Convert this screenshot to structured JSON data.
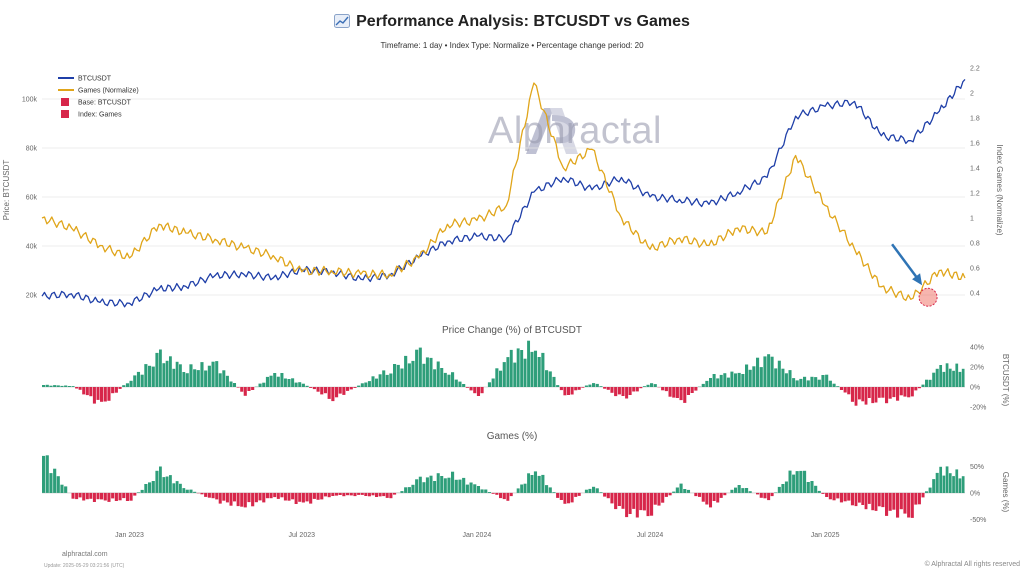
{
  "header": {
    "title": "Performance Analysis: BTCUSDT vs Games",
    "subtitle": "Timeframe: 1 day  •  Index Type: Normalize  •  Percentage change period: 20"
  },
  "legend": [
    {
      "label": "BTCUSDT",
      "type": "line",
      "color": "#1f3fa8"
    },
    {
      "label": "Games (Normalize)",
      "type": "line",
      "color": "#e0a51a"
    },
    {
      "label": "Base: BTCUSDT",
      "type": "box",
      "color": "#d7264a"
    },
    {
      "label": "Index: Games",
      "type": "box",
      "color": "#d7264a"
    }
  ],
  "watermark": "Alphractal",
  "footer": {
    "site": "alphractal.com",
    "update": "Update: 2025-05-29 03:21:56 (UTC)",
    "copyright": "© Alphractal All rights reserved"
  },
  "chart_data": [
    {
      "type": "line",
      "x": [
        "2022-10-01",
        "2022-11-01",
        "2022-12-01",
        "2023-01-01",
        "2023-02-01",
        "2023-03-01",
        "2023-04-01",
        "2023-05-01",
        "2023-06-01",
        "2023-07-01",
        "2023-08-01",
        "2023-09-01",
        "2023-10-01",
        "2023-11-01",
        "2023-12-01",
        "2024-01-01",
        "2024-02-01",
        "2024-03-01",
        "2024-04-01",
        "2024-05-01",
        "2024-06-01",
        "2024-07-01",
        "2024-08-01",
        "2024-09-01",
        "2024-10-01",
        "2024-11-01",
        "2024-12-01",
        "2025-01-01",
        "2025-02-01",
        "2025-03-01",
        "2025-04-01",
        "2025-05-01",
        "2025-05-28"
      ],
      "series": [
        {
          "name": "BTCUSDT",
          "axis": "left",
          "color": "#1f3fa8",
          "values": [
            19500,
            20500,
            17000,
            16600,
            22500,
            23500,
            28000,
            28500,
            27000,
            30300,
            29500,
            26500,
            28000,
            35500,
            42000,
            44000,
            43000,
            62000,
            68000,
            63000,
            68000,
            60000,
            59000,
            57000,
            62000,
            68000,
            93000,
            97000,
            99000,
            85000,
            83000,
            95000,
            108000
          ]
        },
        {
          "name": "Games (Normalize)",
          "axis": "right",
          "color": "#e0a51a",
          "values": [
            1.0,
            0.92,
            0.78,
            0.68,
            0.95,
            0.88,
            0.83,
            0.76,
            0.7,
            0.57,
            0.58,
            0.55,
            0.55,
            0.68,
            0.95,
            0.98,
            1.1,
            2.08,
            1.4,
            1.55,
            1.0,
            0.75,
            0.84,
            0.78,
            0.92,
            0.88,
            1.5,
            1.1,
            0.75,
            0.45,
            0.35,
            0.58,
            0.52
          ]
        }
      ],
      "annotation": {
        "x": "2025-04-15",
        "y": 0.35,
        "type": "circle-arrow"
      },
      "ylabel": "Price: BTCUSDT",
      "ylabel_right": "Index Games (Normalize)",
      "yticks_left": [
        "20k",
        "40k",
        "60k",
        "80k",
        "100k"
      ],
      "yticks_right": [
        "0.4",
        "0.6",
        "0.8",
        "1",
        "1.2",
        "1.4",
        "1.6",
        "1.8",
        "2",
        "2.2"
      ],
      "legend_placement": "top-left",
      "grid": true
    },
    {
      "type": "bar",
      "title": "Price Change (%) of BTCUSDT",
      "ylabel": "BTCUSDT (%)",
      "yticks": [
        "40%",
        "20%",
        "0%",
        "-20%"
      ],
      "ylim": [
        -25,
        45
      ],
      "x": [
        "2022-10-01",
        "2022-11-01",
        "2022-12-01",
        "2023-01-01",
        "2023-02-01",
        "2023-03-01",
        "2023-04-01",
        "2023-05-01",
        "2023-06-01",
        "2023-07-01",
        "2023-08-01",
        "2023-09-01",
        "2023-10-01",
        "2023-11-01",
        "2023-12-01",
        "2024-01-01",
        "2024-02-01",
        "2024-03-01",
        "2024-04-01",
        "2024-05-01",
        "2024-06-01",
        "2024-07-01",
        "2024-08-01",
        "2024-09-01",
        "2024-10-01",
        "2024-11-01",
        "2024-12-01",
        "2025-01-01",
        "2025-02-01",
        "2025-03-01",
        "2025-04-01",
        "2025-05-01",
        "2025-05-28"
      ],
      "values": [
        2,
        1,
        -18,
        8,
        30,
        18,
        22,
        -8,
        14,
        3,
        -12,
        3,
        18,
        32,
        15,
        -10,
        30,
        40,
        -10,
        5,
        -12,
        5,
        -16,
        10,
        14,
        30,
        8,
        10,
        -15,
        -14,
        -8,
        20,
        18
      ],
      "colors": {
        "positive": "#2e9e7a",
        "negative": "#d7264a"
      }
    },
    {
      "type": "bar",
      "title": "Games (%)",
      "ylabel": "Games (%)",
      "yticks": [
        "50%",
        "0%",
        "-50%"
      ],
      "ylim": [
        -55,
        85
      ],
      "x": [
        "2022-10-01",
        "2022-11-01",
        "2022-12-01",
        "2023-01-01",
        "2023-02-01",
        "2023-03-01",
        "2023-04-01",
        "2023-05-01",
        "2023-06-01",
        "2023-07-01",
        "2023-08-01",
        "2023-09-01",
        "2023-10-01",
        "2023-11-01",
        "2023-12-01",
        "2024-01-01",
        "2024-02-01",
        "2024-03-01",
        "2024-04-01",
        "2024-05-01",
        "2024-06-01",
        "2024-07-01",
        "2024-08-01",
        "2024-09-01",
        "2024-10-01",
        "2024-11-01",
        "2024-12-01",
        "2025-01-01",
        "2025-02-01",
        "2025-03-01",
        "2025-04-01",
        "2025-05-01",
        "2025-05-28"
      ],
      "values": [
        70,
        -10,
        -15,
        -12,
        40,
        8,
        -15,
        -25,
        -8,
        -20,
        -5,
        -5,
        -8,
        25,
        35,
        12,
        -15,
        45,
        -25,
        15,
        -40,
        -35,
        15,
        -25,
        15,
        -15,
        50,
        -10,
        -20,
        -35,
        -40,
        45,
        30
      ],
      "colors": {
        "positive": "#2e9e7a",
        "negative": "#d7264a"
      }
    }
  ],
  "xaxis": {
    "ticks": [
      "Jan 2023",
      "Jul 2023",
      "Jan 2024",
      "Jul 2024",
      "Jan 2025"
    ]
  }
}
